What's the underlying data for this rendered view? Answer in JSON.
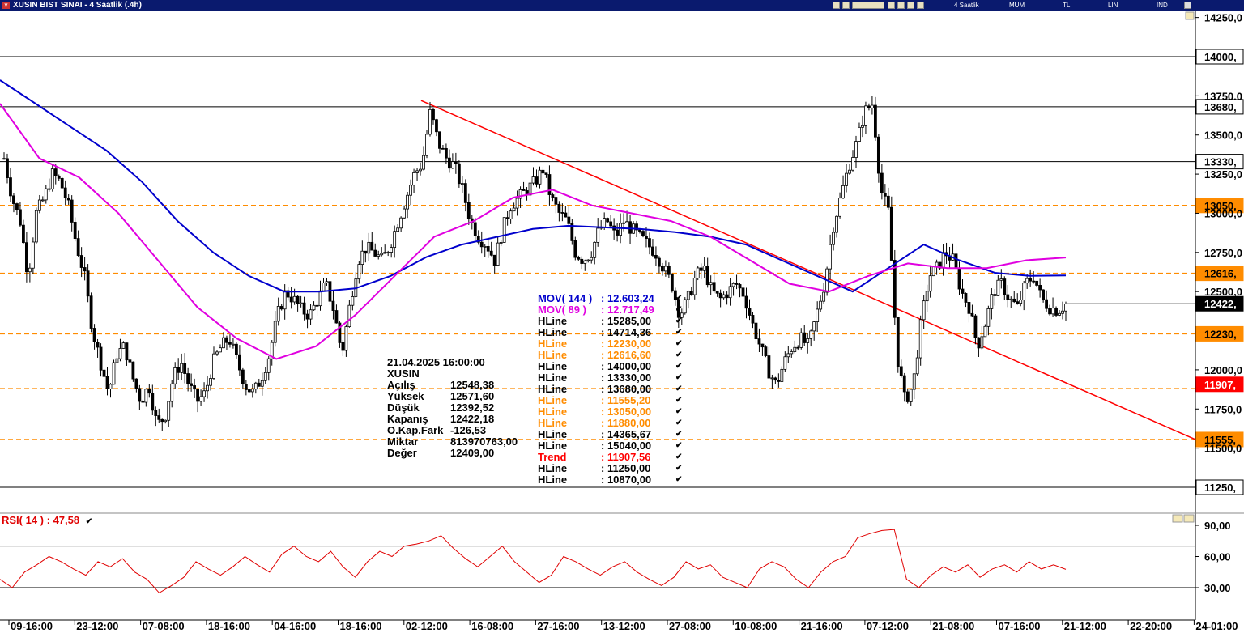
{
  "window": {
    "title": "XUSIN BIST SINAI - 4 Saatlik (.4h)",
    "toolbar": [
      "4 Saatlik",
      "MUM",
      "TL",
      "LIN",
      "IND"
    ]
  },
  "price_axis": {
    "ticks": [
      "14250,0",
      "14000,",
      "13750,0",
      "13680,",
      "13500,0",
      "13330,",
      "13250,0",
      "13050,",
      "13000,0",
      "12750,0",
      "12616,",
      "12500,0",
      "12422,",
      "12230,",
      "12000,0",
      "11907,",
      "11750,0",
      "11555,",
      "11500,0",
      "11250,"
    ]
  },
  "time_axis": {
    "labels": [
      "09-16:00",
      "23-12:00",
      "07-08:00",
      "18-16:00",
      "04-16:00",
      "18-16:00",
      "02-12:00",
      "16-08:00",
      "27-16:00",
      "13-12:00",
      "27-08:00",
      "10-08:00",
      "21-16:00",
      "07-12:00",
      "21-08:00",
      "07-16:00",
      "21-12:00",
      "22-20:00",
      "24-01:00"
    ]
  },
  "info_box": {
    "datetime": "21.04.2025  16:00:00",
    "symbol": "XUSIN",
    "rows": [
      {
        "k": "Açılış",
        "v": "12548,38"
      },
      {
        "k": "Yüksek",
        "v": "12571,60"
      },
      {
        "k": "Düşük",
        "v": "12392,52"
      },
      {
        "k": "Kapanış",
        "v": "12422,18"
      },
      {
        "k": "O.Kap.Fark",
        "v": "-126,53"
      },
      {
        "k": "Miktar",
        "v": "813970763,00"
      },
      {
        "k": "Değer",
        "v": "12409,00"
      }
    ]
  },
  "legend": [
    {
      "k": "MOV( 144 )",
      "v": ": 12.603,24",
      "color": "#0000cc"
    },
    {
      "k": "MOV( 89 )",
      "v": ": 12.717,49",
      "color": "#e000e0"
    },
    {
      "k": "HLine",
      "v": ": 15285,00",
      "color": "#000000"
    },
    {
      "k": "HLine",
      "v": ": 14714,36",
      "color": "#000000"
    },
    {
      "k": "HLine",
      "v": ": 12230,00",
      "color": "#ff8c00"
    },
    {
      "k": "HLine",
      "v": ": 12616,60",
      "color": "#ff8c00"
    },
    {
      "k": "HLine",
      "v": ": 14000,00",
      "color": "#000000"
    },
    {
      "k": "HLine",
      "v": ": 13330,00",
      "color": "#000000"
    },
    {
      "k": "HLine",
      "v": ": 13680,00",
      "color": "#000000"
    },
    {
      "k": "HLine",
      "v": ": 11555,20",
      "color": "#ff8c00"
    },
    {
      "k": "HLine",
      "v": ": 13050,00",
      "color": "#ff8c00"
    },
    {
      "k": "HLine",
      "v": ": 11880,00",
      "color": "#ff8c00"
    },
    {
      "k": "HLine",
      "v": ": 14365,67",
      "color": "#000000"
    },
    {
      "k": "HLine",
      "v": ": 15040,00",
      "color": "#000000"
    },
    {
      "k": "Trend",
      "v": ": 11907,56",
      "color": "#ff0000"
    },
    {
      "k": "HLine",
      "v": ": 11250,00",
      "color": "#000000"
    },
    {
      "k": "HLine",
      "v": ": 10870,00",
      "color": "#000000"
    }
  ],
  "rsi": {
    "label": "RSI( 14 )   : 47,58",
    "ticks": [
      "90,00",
      "60,00",
      "30,00"
    ]
  },
  "chart_data": {
    "type": "candlestick",
    "symbol": "XUSIN",
    "ylim": [
      11250,
      14300
    ],
    "hlines_black": [
      14000,
      13680,
      13330,
      11250
    ],
    "hlines_orange": [
      13050,
      12616.6,
      12230,
      11880,
      11555.2
    ],
    "last_price": 12422.18,
    "trend_label": 11907.56,
    "trendline": {
      "from": [
        0,
        13720
      ],
      "to": [
        1,
        11555
      ]
    },
    "close_path": [
      13350,
      13100,
      12950,
      12600,
      13000,
      13100,
      13250,
      13200,
      13050,
      12800,
      12600,
      12250,
      12050,
      11850,
      12100,
      12150,
      11950,
      11800,
      11900,
      11650,
      11700,
      11950,
      12050,
      11900,
      11800,
      11850,
      12050,
      12150,
      12200,
      12050,
      11900,
      11850,
      11950,
      12100,
      12350,
      12500,
      12450,
      12380,
      12350,
      12450,
      12550,
      12380,
      12100,
      12420,
      12700,
      12780,
      12750,
      12700,
      12800,
      12950,
      13100,
      13250,
      13320,
      13650,
      13450,
      13350,
      13300,
      13150,
      12950,
      12850,
      12800,
      12700,
      12900,
      13050,
      13100,
      13150,
      13200,
      13280,
      13100,
      13000,
      12950,
      12750,
      12700,
      12750,
      12900,
      12950,
      12850,
      12950,
      12900,
      12850,
      12800,
      12750,
      12650,
      12550,
      12350,
      12450,
      12600,
      12650,
      12500,
      12450,
      12500,
      12550,
      12480,
      12300,
      12150,
      12000,
      11900,
      12050,
      12150,
      12200,
      12150,
      12350,
      12550,
      12900,
      13100,
      13300,
      13450,
      13650,
      13700,
      13150,
      13000,
      12100,
      11800,
      11900,
      12300,
      12600,
      12650,
      12750,
      12700,
      12500,
      12400,
      12150,
      12300,
      12500,
      12550,
      12450,
      12400,
      12550,
      12600,
      12450,
      12400,
      12380,
      12420
    ],
    "mov144_path": [
      13850,
      13700,
      13550,
      13400,
      13200,
      12950,
      12750,
      12600,
      12500,
      12500,
      12520,
      12600,
      12720,
      12800,
      12850,
      12900,
      12920,
      12910,
      12900,
      12880,
      12850,
      12800,
      12700,
      12600,
      12500,
      12650,
      12800,
      12700,
      12620,
      12600,
      12603.24
    ],
    "mov89_path": [
      13700,
      13350,
      13230,
      13000,
      12700,
      12400,
      12200,
      12070,
      12150,
      12350,
      12600,
      12850,
      12950,
      13100,
      13150,
      13050,
      13000,
      12950,
      12850,
      12700,
      12550,
      12500,
      12600,
      12680,
      12650,
      12650,
      12700,
      12717.49
    ],
    "rsi_ylim": [
      15,
      100
    ],
    "rsi_path": [
      38,
      30,
      45,
      52,
      60,
      55,
      48,
      42,
      55,
      50,
      58,
      45,
      38,
      25,
      32,
      40,
      55,
      48,
      42,
      50,
      60,
      52,
      45,
      62,
      70,
      60,
      55,
      65,
      50,
      40,
      55,
      65,
      60,
      70,
      72,
      75,
      80,
      68,
      58,
      50,
      60,
      70,
      55,
      45,
      35,
      42,
      60,
      55,
      48,
      42,
      50,
      55,
      45,
      38,
      32,
      40,
      55,
      48,
      52,
      40,
      35,
      30,
      48,
      55,
      50,
      38,
      30,
      45,
      55,
      60,
      78,
      82,
      85,
      86,
      38,
      30,
      42,
      50,
      45,
      52,
      40,
      48,
      52,
      45,
      55,
      48,
      52,
      47.58
    ],
    "rsi_lines": [
      70,
      30
    ]
  }
}
